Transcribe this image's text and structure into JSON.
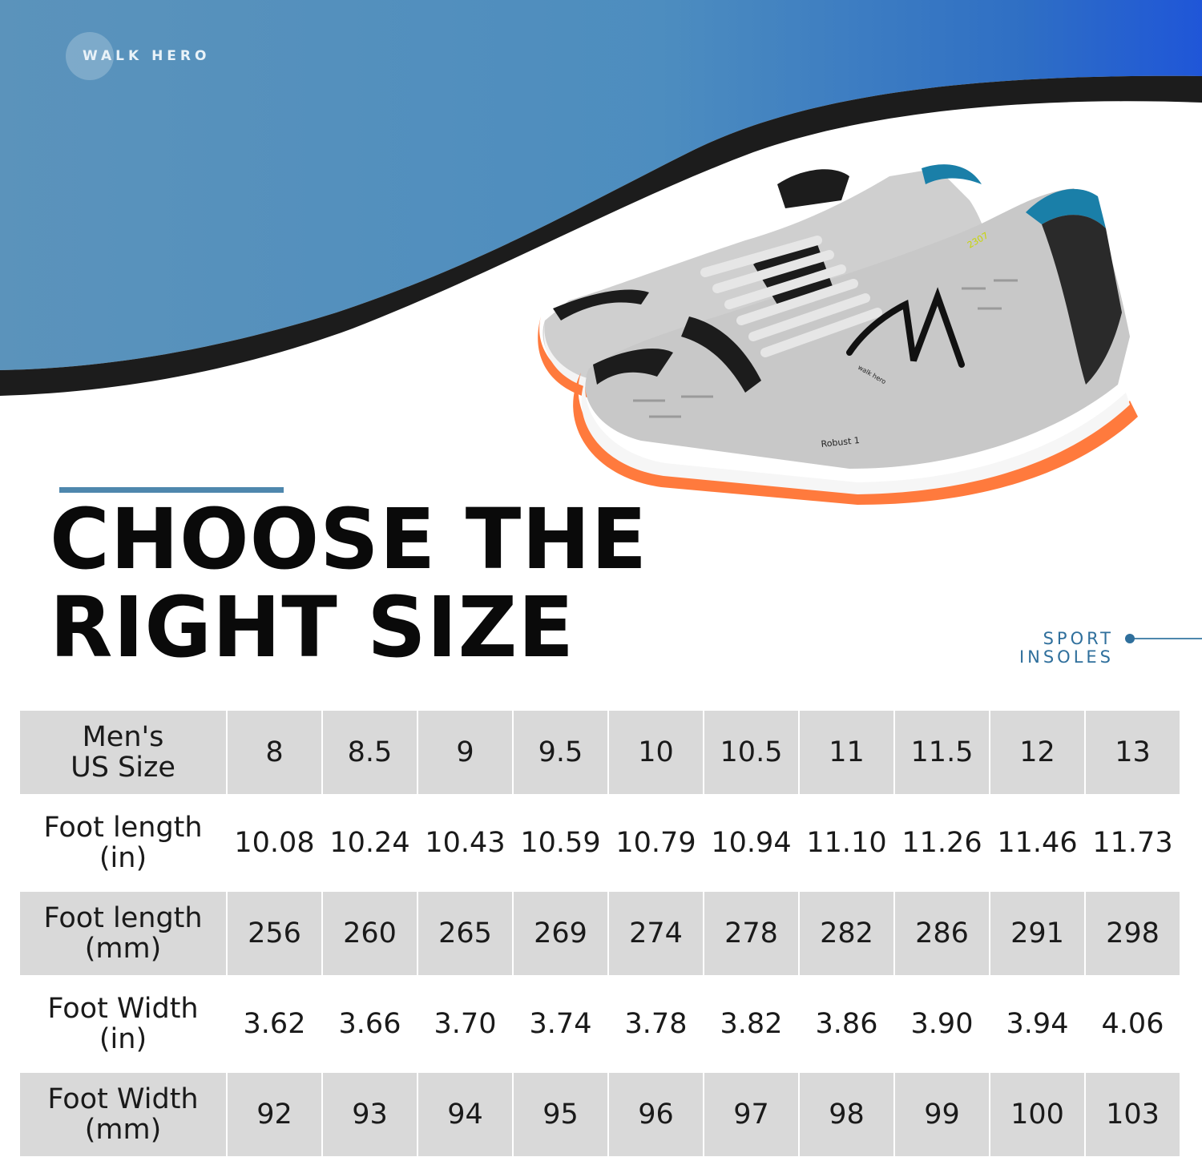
{
  "brand": {
    "name": "WALK HERO"
  },
  "headline": {
    "line1": "CHOOSE THE",
    "line2": "RIGHT SIZE"
  },
  "tagline": {
    "line1": "SPORT",
    "line2": "INSOLES"
  },
  "shoe": {
    "model_text": "Robust 1",
    "code_text": "2307",
    "side_text": "walk hero"
  },
  "colors": {
    "blue": "#5b93bb",
    "dark": "#1c1c1c",
    "accent_orange": "#ff7a3d",
    "teal": "#1a7fa8"
  },
  "size_chart": {
    "rows": [
      {
        "label_line1": "Men's",
        "label_line2": "US Size",
        "values": [
          "8",
          "8.5",
          "9",
          "9.5",
          "10",
          "10.5",
          "11",
          "11.5",
          "12",
          "13"
        ]
      },
      {
        "label_line1": "Foot length",
        "label_line2": "(in)",
        "values": [
          "10.08",
          "10.24",
          "10.43",
          "10.59",
          "10.79",
          "10.94",
          "11.10",
          "11.26",
          "11.46",
          "11.73"
        ]
      },
      {
        "label_line1": "Foot length",
        "label_line2": "(mm)",
        "values": [
          "256",
          "260",
          "265",
          "269",
          "274",
          "278",
          "282",
          "286",
          "291",
          "298"
        ]
      },
      {
        "label_line1": "Foot Width",
        "label_line2": "(in)",
        "values": [
          "3.62",
          "3.66",
          "3.70",
          "3.74",
          "3.78",
          "3.82",
          "3.86",
          "3.90",
          "3.94",
          "4.06"
        ]
      },
      {
        "label_line1": "Foot Width",
        "label_line2": "(mm)",
        "values": [
          "92",
          "93",
          "94",
          "95",
          "96",
          "97",
          "98",
          "99",
          "100",
          "103"
        ]
      }
    ]
  }
}
